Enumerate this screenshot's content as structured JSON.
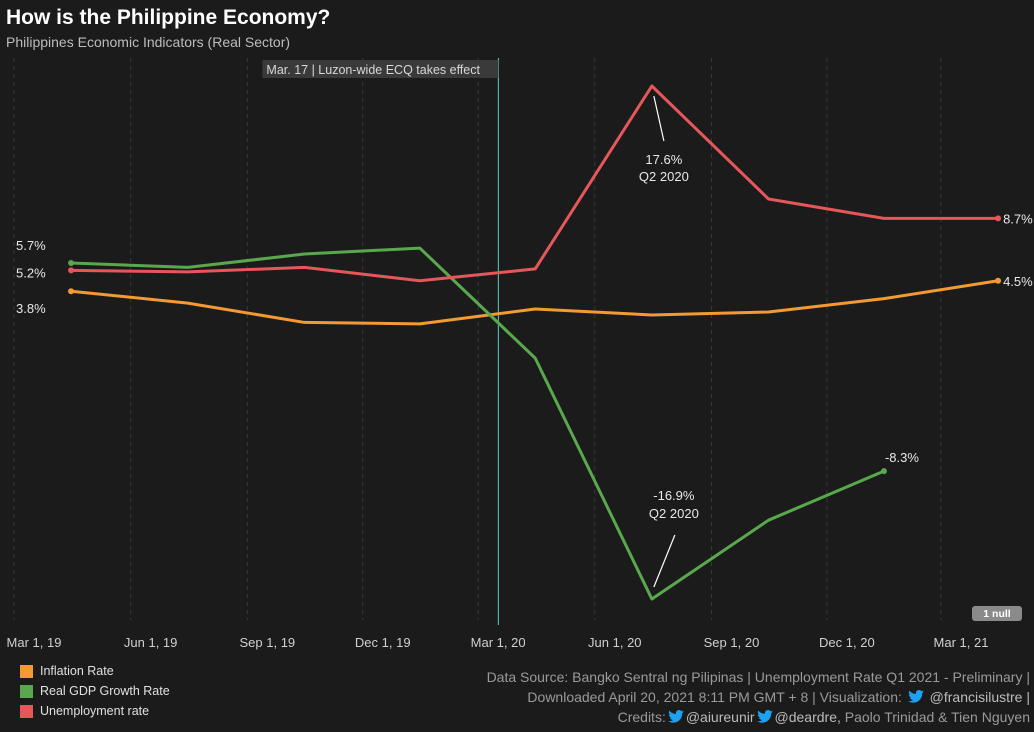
{
  "header": {
    "title": "How is the Philippine Economy?",
    "subtitle": "Philippines Economic Indicators (Real Sector)"
  },
  "event_marker": {
    "date": "2020-03-17",
    "label": "Mar. 17 | Luzon-wide ECQ takes effect",
    "color": "#4fb3a4"
  },
  "null_badge": "1 null",
  "colors": {
    "background": "#1b1b1b",
    "inflation": "#f39a32",
    "gdp": "#5aa84e",
    "unemployment": "#e5575a",
    "gridline": "#3a3a3a"
  },
  "chart_data": {
    "type": "line",
    "x_ticks": [
      "Mar 1, 19",
      "Jun 1, 19",
      "Sep 1, 19",
      "Dec 1, 19",
      "Mar 1, 20",
      "Jun 1, 20",
      "Sep 1, 20",
      "Dec 1, 20",
      "Mar 1, 21"
    ],
    "x_tick_dates": [
      "2019-03-01",
      "2019-06-01",
      "2019-09-01",
      "2019-12-01",
      "2020-03-01",
      "2020-06-01",
      "2020-09-01",
      "2020-12-01",
      "2021-03-01"
    ],
    "grid": "vertical dashed",
    "series": [
      {
        "name": "Inflation Rate",
        "color": "#f39a32",
        "points": [
          [
            "2019-03-01",
            3.8
          ],
          [
            "2019-06-01",
            3.0
          ],
          [
            "2019-09-01",
            1.7
          ],
          [
            "2019-12-01",
            1.6
          ],
          [
            "2020-03-01",
            2.6
          ],
          [
            "2020-06-01",
            2.2
          ],
          [
            "2020-09-01",
            2.4
          ],
          [
            "2020-12-01",
            3.3
          ],
          [
            "2021-03-01",
            4.5
          ]
        ]
      },
      {
        "name": "Real GDP Growth Rate",
        "color": "#5aa84e",
        "points": [
          [
            "2019-03-01",
            5.7
          ],
          [
            "2019-06-01",
            5.4
          ],
          [
            "2019-09-01",
            6.3
          ],
          [
            "2019-12-01",
            6.7
          ],
          [
            "2020-03-01",
            -0.7
          ],
          [
            "2020-06-01",
            -16.9
          ],
          [
            "2020-09-01",
            -11.6
          ],
          [
            "2020-12-01",
            -8.3
          ]
        ]
      },
      {
        "name": "Unemployment rate",
        "color": "#e5575a",
        "points": [
          [
            "2019-03-01",
            5.2
          ],
          [
            "2019-06-01",
            5.1
          ],
          [
            "2019-09-01",
            5.4
          ],
          [
            "2019-12-01",
            4.5
          ],
          [
            "2020-03-01",
            5.3
          ],
          [
            "2020-06-01",
            17.6
          ],
          [
            "2020-09-01",
            10.0
          ],
          [
            "2020-12-01",
            8.7
          ],
          [
            "2021-03-01",
            8.7
          ]
        ]
      }
    ],
    "start_labels": [
      {
        "text": "5.7%",
        "series": "Real GDP Growth Rate"
      },
      {
        "text": "5.2%",
        "series": "Unemployment rate"
      },
      {
        "text": "3.8%",
        "series": "Inflation Rate"
      }
    ],
    "end_labels": [
      {
        "text": "8.7%",
        "series": "Unemployment rate"
      },
      {
        "text": "4.5%",
        "series": "Inflation Rate"
      },
      {
        "text": "-8.3%",
        "series": "Real GDP Growth Rate"
      }
    ],
    "annotations": [
      {
        "series": "Unemployment rate",
        "date": "2020-06-01",
        "lines": [
          "17.6%",
          "Q2 2020"
        ],
        "position": "below"
      },
      {
        "series": "Real GDP Growth Rate",
        "date": "2020-06-01",
        "lines": [
          "-16.9%",
          "Q2 2020"
        ],
        "position": "above"
      }
    ]
  },
  "legend": [
    {
      "label": "Inflation Rate",
      "color": "#f39a32"
    },
    {
      "label": "Real GDP Growth Rate",
      "color": "#5aa84e"
    },
    {
      "label": "Unemployment rate",
      "color": "#e5575a"
    }
  ],
  "footer": {
    "line1": "Data Source: Bangko Sentral ng Pilipinas | Unemployment Rate Q1 2021 - Preliminary |",
    "line2_prefix": "Downloaded  April 20, 2021 8:11 PM GMT + 8 | Visualization:",
    "line2_handle": "@francisilustre |",
    "line3_prefix": "Credits:",
    "line3_handle1": "@aiureunir",
    "line3_handle2": "@deardre,",
    "line3_suffix": "Paolo Trinidad & Tien Nguyen"
  }
}
